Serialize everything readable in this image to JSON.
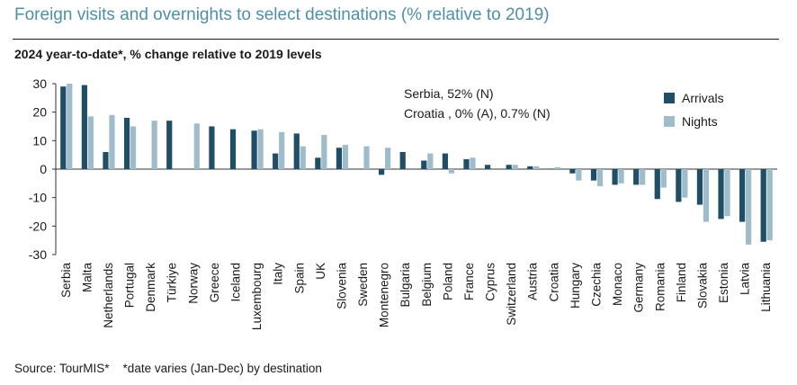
{
  "header": {
    "title": "Foreign visits and overnights to select destinations (% relative to 2019)",
    "subtitle": "2024 year-to-date*, % change relative to 2019 levels"
  },
  "annotations": {
    "line1": "Serbia, 52% (N)",
    "line2": "Croatia , 0% (A), 0.7% (N)"
  },
  "footer": {
    "source": "Source: TourMIS*    *date varies (Jan-Dec) by destination"
  },
  "colors": {
    "arrivals": "#1f4e66",
    "nights": "#9fbccb"
  },
  "chart_data": {
    "type": "bar",
    "title": "Foreign visits and overnights to select destinations (% relative to 2019)",
    "subtitle": "2024 year-to-date*, % change relative to 2019 levels",
    "ylim": [
      -30,
      30
    ],
    "yticks": [
      30,
      20,
      10,
      0,
      -10,
      -20,
      -30
    ],
    "grid": false,
    "legend": "top-right",
    "categories": [
      "Serbia",
      "Malta",
      "Netherlands",
      "Portugal",
      "Denmark",
      "Türkiye",
      "Norway",
      "Greece",
      "Iceland",
      "Luxembourg",
      "Italy",
      "Spain",
      "UK",
      "Slovenia",
      "Sweden",
      "Montenegro",
      "Bulgaria",
      "Belgium",
      "Poland",
      "France",
      "Cyprus",
      "Switzerland",
      "Austria",
      "Croatia",
      "Hungary",
      "Czechia",
      "Monaco",
      "Germany",
      "Romania",
      "Finland",
      "Slovakia",
      "Estonia",
      "Latvia",
      "Lithuania"
    ],
    "series": [
      {
        "name": "Arrivals",
        "values": [
          29,
          29.5,
          6,
          18,
          null,
          17,
          null,
          15,
          14,
          13.5,
          5.5,
          12.5,
          4,
          7.5,
          null,
          -2,
          6,
          3,
          5.5,
          3.5,
          1.5,
          1.5,
          1,
          0,
          -1.5,
          -4,
          -5.5,
          -5.5,
          -10.5,
          -11.5,
          -12.5,
          -17.5,
          -18.5,
          -25.5
        ]
      },
      {
        "name": "Nights",
        "values": [
          30,
          18.5,
          19,
          15,
          17,
          null,
          16,
          null,
          null,
          14,
          13,
          8,
          12,
          8.5,
          8,
          7.5,
          null,
          5.5,
          -1.5,
          4,
          null,
          1.5,
          1,
          0.7,
          -4,
          -6,
          -5,
          -5.5,
          -6.5,
          -10,
          -18.5,
          -16.5,
          -26.5,
          -25
        ]
      }
    ]
  }
}
